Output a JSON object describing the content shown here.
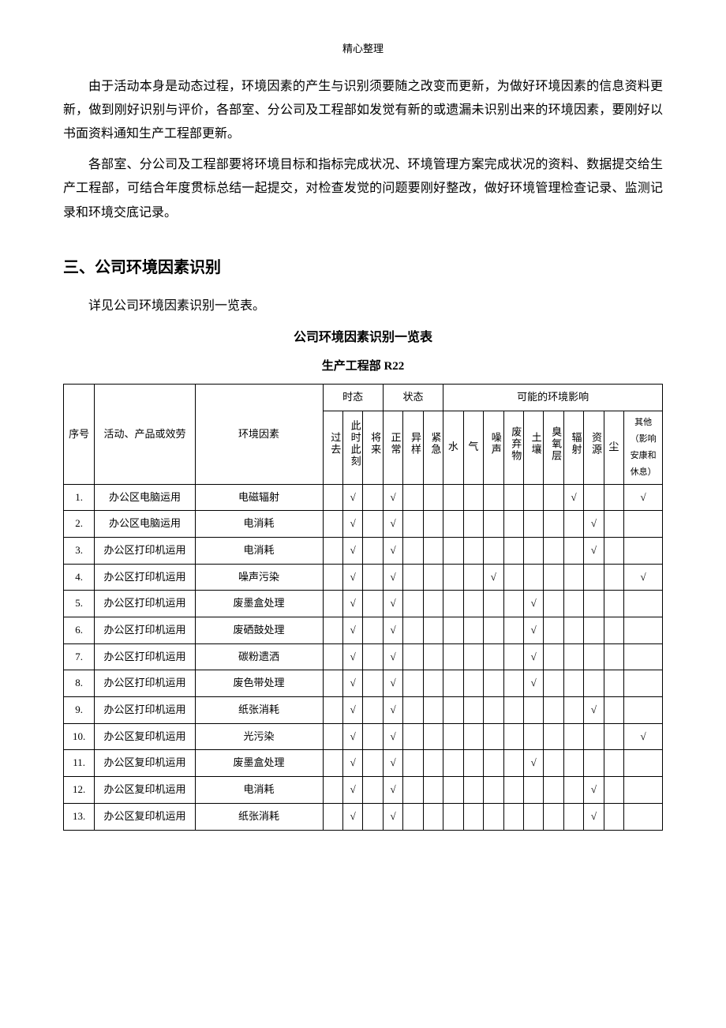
{
  "header_note": "精心整理",
  "paragraphs": [
    "由于活动本身是动态过程，环境因素的产生与识别须要随之改变而更新，为做好环境因素的信息资料更新，做到刚好识别与评价，各部室、分公司及工程部如发觉有新的或遗漏未识别出来的环境因素，要刚好以书面资料通知生产工程部更新。",
    "各部室、分公司及工程部要将环境目标和指标完成状况、环境管理方案完成状况的资料、数据提交给生产工程部，可结合年度贯标总结一起提交，对检查发觉的问题要刚好整改，做好环境管理检查记录、监测记录和环境交底记录。"
  ],
  "section_title": "三、公司环境因素识别",
  "section_intro": "详见公司环境因素识别一览表。",
  "table_title": "公司环境因素识别一览表",
  "table_subtitle": "生产工程部 R22",
  "headers": {
    "seq": "序号",
    "activity": "活动、产品或效劳",
    "factor": "环境因素",
    "tense": "时态",
    "state": "状态",
    "impact": "可能的环境影响",
    "tense_cols": [
      "过去",
      "此时此刻",
      "将来"
    ],
    "state_cols": [
      "正常",
      "异样",
      "紧急"
    ],
    "impact_cols": [
      "水",
      "气",
      "噪声",
      "废弃物",
      "土壤",
      "臭氧层",
      "辐射",
      "资源",
      "尘",
      "其他（影响安康和休息）"
    ]
  },
  "rows": [
    {
      "seq": "1.",
      "activity": "办公区电脑运用",
      "factor": "电磁辐射",
      "tense": [
        0,
        1,
        0
      ],
      "state": [
        1,
        0,
        0
      ],
      "impact": [
        0,
        0,
        0,
        0,
        0,
        0,
        1,
        0,
        0,
        1
      ]
    },
    {
      "seq": "2.",
      "activity": "办公区电脑运用",
      "factor": "电消耗",
      "tense": [
        0,
        1,
        0
      ],
      "state": [
        1,
        0,
        0
      ],
      "impact": [
        0,
        0,
        0,
        0,
        0,
        0,
        0,
        1,
        0,
        0
      ]
    },
    {
      "seq": "3.",
      "activity": "办公区打印机运用",
      "factor": "电消耗",
      "tense": [
        0,
        1,
        0
      ],
      "state": [
        1,
        0,
        0
      ],
      "impact": [
        0,
        0,
        0,
        0,
        0,
        0,
        0,
        1,
        0,
        0
      ]
    },
    {
      "seq": "4.",
      "activity": "办公区打印机运用",
      "factor": "噪声污染",
      "tense": [
        0,
        1,
        0
      ],
      "state": [
        1,
        0,
        0
      ],
      "impact": [
        0,
        0,
        1,
        0,
        0,
        0,
        0,
        0,
        0,
        1
      ]
    },
    {
      "seq": "5.",
      "activity": "办公区打印机运用",
      "factor": "废墨盒处理",
      "tense": [
        0,
        1,
        0
      ],
      "state": [
        1,
        0,
        0
      ],
      "impact": [
        0,
        0,
        0,
        0,
        1,
        0,
        0,
        0,
        0,
        0
      ]
    },
    {
      "seq": "6.",
      "activity": "办公区打印机运用",
      "factor": "废硒鼓处理",
      "tense": [
        0,
        1,
        0
      ],
      "state": [
        1,
        0,
        0
      ],
      "impact": [
        0,
        0,
        0,
        0,
        1,
        0,
        0,
        0,
        0,
        0
      ]
    },
    {
      "seq": "7.",
      "activity": "办公区打印机运用",
      "factor": "碳粉遗洒",
      "tense": [
        0,
        1,
        0
      ],
      "state": [
        1,
        0,
        0
      ],
      "impact": [
        0,
        0,
        0,
        0,
        1,
        0,
        0,
        0,
        0,
        0
      ]
    },
    {
      "seq": "8.",
      "activity": "办公区打印机运用",
      "factor": "废色带处理",
      "tense": [
        0,
        1,
        0
      ],
      "state": [
        1,
        0,
        0
      ],
      "impact": [
        0,
        0,
        0,
        0,
        1,
        0,
        0,
        0,
        0,
        0
      ]
    },
    {
      "seq": "9.",
      "activity": "办公区打印机运用",
      "factor": "纸张消耗",
      "tense": [
        0,
        1,
        0
      ],
      "state": [
        1,
        0,
        0
      ],
      "impact": [
        0,
        0,
        0,
        0,
        0,
        0,
        0,
        1,
        0,
        0
      ]
    },
    {
      "seq": "10.",
      "activity": "办公区复印机运用",
      "factor": "光污染",
      "tense": [
        0,
        1,
        0
      ],
      "state": [
        1,
        0,
        0
      ],
      "impact": [
        0,
        0,
        0,
        0,
        0,
        0,
        0,
        0,
        0,
        1
      ]
    },
    {
      "seq": "11.",
      "activity": "办公区复印机运用",
      "factor": "废墨盒处理",
      "tense": [
        0,
        1,
        0
      ],
      "state": [
        1,
        0,
        0
      ],
      "impact": [
        0,
        0,
        0,
        0,
        1,
        0,
        0,
        0,
        0,
        0
      ]
    },
    {
      "seq": "12.",
      "activity": "办公区复印机运用",
      "factor": "电消耗",
      "tense": [
        0,
        1,
        0
      ],
      "state": [
        1,
        0,
        0
      ],
      "impact": [
        0,
        0,
        0,
        0,
        0,
        0,
        0,
        1,
        0,
        0
      ]
    },
    {
      "seq": "13.",
      "activity": "办公区复印机运用",
      "factor": "纸张消耗",
      "tense": [
        0,
        1,
        0
      ],
      "state": [
        1,
        0,
        0
      ],
      "impact": [
        0,
        0,
        0,
        0,
        0,
        0,
        0,
        1,
        0,
        0
      ]
    }
  ],
  "check": "√"
}
